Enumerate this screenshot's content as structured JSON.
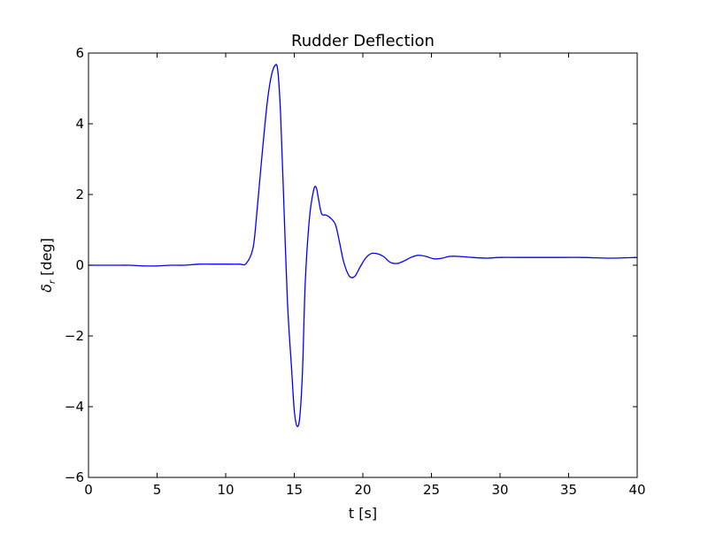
{
  "chart_data": {
    "type": "line",
    "title": "Rudder Deflection",
    "xlabel": "t [s]",
    "ylabel": {
      "symbol": "δ",
      "subscript": "r",
      "unit": " [deg]"
    },
    "xlim": [
      0,
      40
    ],
    "ylim": [
      -6,
      6
    ],
    "xticks": [
      0,
      5,
      10,
      15,
      20,
      25,
      30,
      35,
      40
    ],
    "yticks": [
      -6,
      -4,
      -2,
      0,
      2,
      4,
      6
    ],
    "grid": false,
    "legend": "none",
    "colors": {
      "line": "#0000ff",
      "axes": "#000000",
      "background": "#ffffff"
    },
    "series": [
      {
        "values_x": [
          0,
          1,
          2,
          3,
          4,
          5,
          6,
          7,
          8,
          9,
          10,
          11,
          11.5,
          12,
          12.3,
          12.6,
          13,
          13.3,
          13.6,
          13.8,
          14,
          14.2,
          14.5,
          14.8,
          15,
          15.2,
          15.4,
          15.6,
          15.8,
          16.1,
          16.4,
          16.6,
          16.8,
          17,
          17.3,
          17.6,
          18,
          18.3,
          18.6,
          19,
          19.4,
          19.8,
          20.2,
          20.6,
          21,
          21.5,
          22,
          22.5,
          23,
          23.5,
          24,
          24.6,
          25.2,
          25.8,
          26.3,
          27,
          28,
          29,
          30,
          32,
          34,
          36,
          38,
          40
        ],
        "values_y": [
          0.0,
          0.0,
          0.0,
          0.0,
          -0.02,
          -0.02,
          0.0,
          0.0,
          0.03,
          0.03,
          0.03,
          0.03,
          0.05,
          0.5,
          1.6,
          2.9,
          4.5,
          5.3,
          5.65,
          5.5,
          4.3,
          2.2,
          -1.0,
          -2.9,
          -4.1,
          -4.55,
          -4.3,
          -3.0,
          -0.5,
          1.3,
          2.1,
          2.2,
          1.8,
          1.45,
          1.42,
          1.35,
          1.15,
          0.65,
          0.1,
          -0.3,
          -0.32,
          -0.05,
          0.2,
          0.33,
          0.33,
          0.25,
          0.08,
          0.05,
          0.12,
          0.22,
          0.28,
          0.25,
          0.18,
          0.2,
          0.25,
          0.25,
          0.22,
          0.2,
          0.22,
          0.22,
          0.22,
          0.22,
          0.2,
          0.22
        ]
      }
    ]
  }
}
